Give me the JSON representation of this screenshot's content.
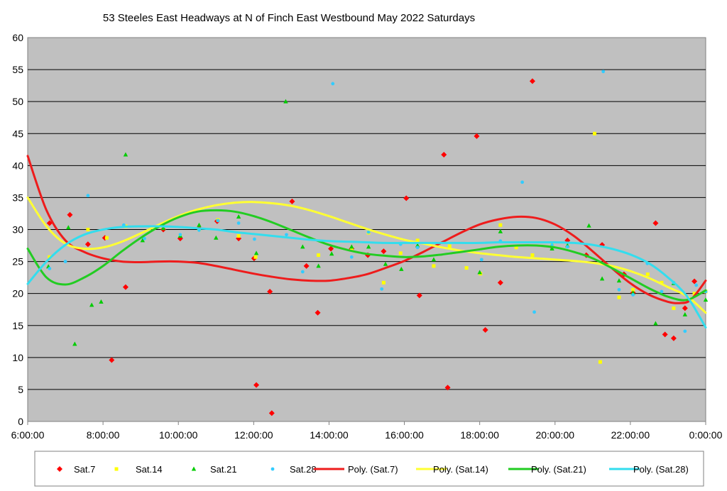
{
  "chart_data": {
    "type": "scatter",
    "title": "53 Steeles East Headways at N of Finch East Westbound May 2022  Saturdays",
    "xlabel": "",
    "ylabel": "",
    "xlim": [
      6,
      24
    ],
    "ylim": [
      0,
      60
    ],
    "x_unit": "hours",
    "x_tick_labels": [
      "6:00:00",
      "8:00:00",
      "10:00:00",
      "12:00:00",
      "14:00:00",
      "16:00:00",
      "18:00:00",
      "20:00:00",
      "22:00:00",
      "0:00:00"
    ],
    "y_ticks": [
      0,
      5,
      10,
      15,
      20,
      25,
      30,
      35,
      40,
      45,
      50,
      55,
      60
    ],
    "grid": true,
    "legend_position": "bottom",
    "series": [
      {
        "name": "Sat.7",
        "color": "#ff0000",
        "marker": "diamond",
        "points": [
          [
            6.58,
            31
          ],
          [
            7.12,
            32.3
          ],
          [
            7.6,
            27.7
          ],
          [
            8.05,
            28.7
          ],
          [
            8.23,
            9.6
          ],
          [
            8.6,
            21
          ],
          [
            9.6,
            30
          ],
          [
            10.05,
            28.6
          ],
          [
            10.55,
            30.2
          ],
          [
            11.03,
            31.3
          ],
          [
            11.6,
            28.6
          ],
          [
            12.01,
            25.5
          ],
          [
            12.07,
            5.7
          ],
          [
            12.43,
            20.3
          ],
          [
            12.48,
            1.3
          ],
          [
            13.02,
            34.4
          ],
          [
            13.4,
            24.3
          ],
          [
            13.7,
            17
          ],
          [
            14.05,
            27
          ],
          [
            14.6,
            27
          ],
          [
            15.03,
            26
          ],
          [
            15.45,
            26.6
          ],
          [
            16.05,
            34.9
          ],
          [
            16.4,
            19.7
          ],
          [
            17.05,
            41.7
          ],
          [
            17.15,
            5.3
          ],
          [
            17.92,
            44.6
          ],
          [
            18.15,
            14.3
          ],
          [
            18.55,
            21.7
          ],
          [
            19.4,
            53.2
          ],
          [
            19.92,
            27.3
          ],
          [
            20.33,
            28.3
          ],
          [
            20.83,
            26
          ],
          [
            21.25,
            27.6
          ],
          [
            21.83,
            23
          ],
          [
            22.07,
            20.1
          ],
          [
            22.67,
            31
          ],
          [
            22.92,
            13.6
          ],
          [
            23.15,
            13
          ],
          [
            23.45,
            17.7
          ],
          [
            23.7,
            21.9
          ]
        ]
      },
      {
        "name": "Sat.14",
        "color": "#ffff00",
        "marker": "square",
        "points": [
          [
            6.58,
            25.7
          ],
          [
            7.6,
            30
          ],
          [
            8.1,
            28.7
          ],
          [
            8.6,
            30.5
          ],
          [
            9.5,
            30.5
          ],
          [
            10.05,
            29
          ],
          [
            10.55,
            30
          ],
          [
            11.05,
            31.5
          ],
          [
            11.6,
            29
          ],
          [
            12.05,
            25.7
          ],
          [
            13.72,
            26
          ],
          [
            14.6,
            27
          ],
          [
            15.05,
            29.5
          ],
          [
            15.45,
            21.7
          ],
          [
            15.9,
            26.3
          ],
          [
            16.35,
            28.3
          ],
          [
            16.78,
            24.3
          ],
          [
            17.2,
            27.4
          ],
          [
            17.65,
            24
          ],
          [
            18.02,
            23.1
          ],
          [
            18.55,
            30.7
          ],
          [
            18.97,
            27.2
          ],
          [
            19.4,
            26
          ],
          [
            19.92,
            27.6
          ],
          [
            21.05,
            45
          ],
          [
            21.2,
            9.3
          ],
          [
            21.7,
            19.4
          ],
          [
            22.07,
            20.6
          ],
          [
            22.46,
            23
          ],
          [
            22.83,
            21.7
          ],
          [
            23.15,
            17.7
          ],
          [
            23.7,
            20
          ],
          [
            24.0,
            20.3
          ]
        ]
      },
      {
        "name": "Sat.21",
        "color": "#00cc00",
        "marker": "triangle",
        "points": [
          [
            6.55,
            24.2
          ],
          [
            7.08,
            30.3
          ],
          [
            7.25,
            12.1
          ],
          [
            7.7,
            18.2
          ],
          [
            7.95,
            18.7
          ],
          [
            8.6,
            41.7
          ],
          [
            9.05,
            28.3
          ],
          [
            9.6,
            30.2
          ],
          [
            10.05,
            29
          ],
          [
            10.55,
            30.7
          ],
          [
            11.0,
            28.7
          ],
          [
            11.6,
            32
          ],
          [
            12.07,
            26.3
          ],
          [
            12.85,
            50
          ],
          [
            13.3,
            27.3
          ],
          [
            13.72,
            24.3
          ],
          [
            14.07,
            26.2
          ],
          [
            14.6,
            27.3
          ],
          [
            15.05,
            27.3
          ],
          [
            15.5,
            24.6
          ],
          [
            15.92,
            23.8
          ],
          [
            16.35,
            27.5
          ],
          [
            16.78,
            25.3
          ],
          [
            18.0,
            23.3
          ],
          [
            18.55,
            29.7
          ],
          [
            19.92,
            27
          ],
          [
            20.33,
            27.5
          ],
          [
            20.9,
            30.6
          ],
          [
            21.25,
            22.3
          ],
          [
            21.7,
            22
          ],
          [
            22.07,
            20.1
          ],
          [
            22.67,
            15.3
          ],
          [
            23.15,
            21.6
          ],
          [
            23.45,
            16.7
          ],
          [
            24.0,
            19
          ]
        ]
      },
      {
        "name": "Sat.28",
        "color": "#33ccff",
        "marker": "circle",
        "points": [
          [
            6.58,
            23.9
          ],
          [
            7.0,
            25
          ],
          [
            7.6,
            35.3
          ],
          [
            8.55,
            30.7
          ],
          [
            9.1,
            28.6
          ],
          [
            9.6,
            30.7
          ],
          [
            10.05,
            29.2
          ],
          [
            10.55,
            29.9
          ],
          [
            11.05,
            31.4
          ],
          [
            11.6,
            31
          ],
          [
            12.02,
            28.5
          ],
          [
            12.87,
            29.2
          ],
          [
            13.3,
            23.4
          ],
          [
            14.1,
            52.8
          ],
          [
            14.6,
            25.7
          ],
          [
            15.05,
            29.6
          ],
          [
            15.4,
            20.7
          ],
          [
            15.9,
            27.7
          ],
          [
            16.35,
            27.2
          ],
          [
            18.05,
            25.3
          ],
          [
            18.55,
            28.2
          ],
          [
            19.13,
            37.4
          ],
          [
            19.45,
            17.1
          ],
          [
            19.92,
            27.6
          ],
          [
            20.33,
            27.3
          ],
          [
            21.28,
            54.7
          ],
          [
            21.7,
            20.6
          ],
          [
            22.07,
            19.8
          ],
          [
            22.45,
            24.7
          ],
          [
            22.83,
            20.3
          ],
          [
            23.15,
            21.7
          ],
          [
            23.45,
            14.1
          ],
          [
            23.75,
            21.3
          ],
          [
            24.0,
            20.3
          ]
        ]
      }
    ],
    "trendlines": [
      {
        "name": "Poly. (Sat.7)",
        "color": "#ee1c1c",
        "points": [
          [
            6,
            41.5
          ],
          [
            6.5,
            33
          ],
          [
            7,
            28.3
          ],
          [
            7.5,
            26.5
          ],
          [
            8,
            25.5
          ],
          [
            8.5,
            25
          ],
          [
            9,
            24.9
          ],
          [
            9.5,
            25
          ],
          [
            10,
            25
          ],
          [
            10.5,
            24.8
          ],
          [
            11,
            24.3
          ],
          [
            11.5,
            23.7
          ],
          [
            12,
            23.1
          ],
          [
            12.5,
            22.6
          ],
          [
            13,
            22.2
          ],
          [
            13.5,
            22
          ],
          [
            14,
            22
          ],
          [
            14.5,
            22.4
          ],
          [
            15,
            23
          ],
          [
            15.5,
            24
          ],
          [
            16,
            25.1
          ],
          [
            16.5,
            26.5
          ],
          [
            17,
            28
          ],
          [
            17.5,
            29.5
          ],
          [
            18,
            30.8
          ],
          [
            18.5,
            31.6
          ],
          [
            19,
            32
          ],
          [
            19.5,
            31.8
          ],
          [
            20,
            30.8
          ],
          [
            20.5,
            29
          ],
          [
            21,
            26.6
          ],
          [
            21.5,
            24
          ],
          [
            22,
            21.6
          ],
          [
            22.5,
            19.8
          ],
          [
            23,
            18.7
          ],
          [
            23.3,
            18.5
          ],
          [
            23.6,
            19
          ],
          [
            24,
            22
          ]
        ]
      },
      {
        "name": "Poly. (Sat.14)",
        "color": "#ffff33",
        "points": [
          [
            6,
            35
          ],
          [
            6.5,
            30.5
          ],
          [
            7,
            27.8
          ],
          [
            7.5,
            27
          ],
          [
            8,
            27.2
          ],
          [
            8.5,
            28.1
          ],
          [
            9,
            29.4
          ],
          [
            9.5,
            30.8
          ],
          [
            10,
            32.1
          ],
          [
            10.5,
            33.1
          ],
          [
            11,
            33.8
          ],
          [
            11.5,
            34.2
          ],
          [
            12,
            34.3
          ],
          [
            12.5,
            34.1
          ],
          [
            13,
            33.7
          ],
          [
            13.5,
            33
          ],
          [
            14,
            32.1
          ],
          [
            14.5,
            31.1
          ],
          [
            15,
            30.1
          ],
          [
            15.5,
            29.2
          ],
          [
            16,
            28.4
          ],
          [
            16.5,
            27.8
          ],
          [
            17,
            27.2
          ],
          [
            17.5,
            26.7
          ],
          [
            18,
            26.3
          ],
          [
            18.5,
            26
          ],
          [
            19,
            25.7
          ],
          [
            19.5,
            25.5
          ],
          [
            20,
            25.3
          ],
          [
            20.5,
            25.1
          ],
          [
            21,
            24.8
          ],
          [
            21.5,
            24.3
          ],
          [
            22,
            23.5
          ],
          [
            22.5,
            22.4
          ],
          [
            23,
            21
          ],
          [
            23.5,
            19.6
          ],
          [
            24,
            17
          ]
        ]
      },
      {
        "name": "Poly. (Sat.21)",
        "color": "#22cc22",
        "points": [
          [
            6,
            27
          ],
          [
            6.5,
            22.5
          ],
          [
            7,
            21.4
          ],
          [
            7.5,
            22.5
          ],
          [
            8,
            24.3
          ],
          [
            8.5,
            26.6
          ],
          [
            9,
            28.7
          ],
          [
            9.5,
            30.5
          ],
          [
            10,
            31.9
          ],
          [
            10.5,
            32.8
          ],
          [
            11,
            33
          ],
          [
            11.5,
            32.8
          ],
          [
            12,
            32.1
          ],
          [
            12.5,
            31.1
          ],
          [
            13,
            29.9
          ],
          [
            13.5,
            28.7
          ],
          [
            14,
            27.6
          ],
          [
            14.5,
            26.8
          ],
          [
            15,
            26.2
          ],
          [
            15.5,
            25.9
          ],
          [
            16,
            25.7
          ],
          [
            16.5,
            25.8
          ],
          [
            17,
            26.1
          ],
          [
            17.5,
            26.5
          ],
          [
            18,
            26.9
          ],
          [
            18.5,
            27.3
          ],
          [
            19,
            27.5
          ],
          [
            19.5,
            27.5
          ],
          [
            20,
            27.2
          ],
          [
            20.5,
            26.5
          ],
          [
            21,
            25.5
          ],
          [
            21.5,
            24
          ],
          [
            22,
            22.4
          ],
          [
            22.5,
            20.8
          ],
          [
            23,
            19.5
          ],
          [
            23.5,
            19
          ],
          [
            24,
            20.5
          ]
        ]
      },
      {
        "name": "Poly. (Sat.28)",
        "color": "#33ddee",
        "points": [
          [
            6,
            21.5
          ],
          [
            6.5,
            25
          ],
          [
            7,
            27.6
          ],
          [
            7.5,
            29.2
          ],
          [
            8,
            30
          ],
          [
            8.5,
            30.4
          ],
          [
            9,
            30.5
          ],
          [
            9.5,
            30.5
          ],
          [
            10,
            30.4
          ],
          [
            10.5,
            30.2
          ],
          [
            11,
            30
          ],
          [
            11.5,
            29.6
          ],
          [
            12,
            29.3
          ],
          [
            12.5,
            29
          ],
          [
            13,
            28.7
          ],
          [
            13.5,
            28.4
          ],
          [
            14,
            28.2
          ],
          [
            14.5,
            28.1
          ],
          [
            15,
            28
          ],
          [
            15.5,
            27.9
          ],
          [
            16,
            27.9
          ],
          [
            16.5,
            27.9
          ],
          [
            17,
            27.9
          ],
          [
            17.5,
            27.9
          ],
          [
            18,
            27.9
          ],
          [
            18.5,
            28
          ],
          [
            19,
            28
          ],
          [
            19.5,
            28
          ],
          [
            20,
            28
          ],
          [
            20.5,
            27.9
          ],
          [
            21,
            27.6
          ],
          [
            21.5,
            27
          ],
          [
            22,
            26.1
          ],
          [
            22.5,
            24.7
          ],
          [
            23,
            22.5
          ],
          [
            23.5,
            19.6
          ],
          [
            24,
            14.7
          ]
        ]
      }
    ]
  }
}
